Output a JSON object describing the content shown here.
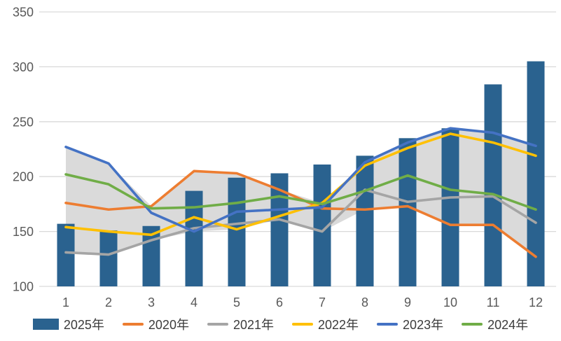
{
  "chart_data": {
    "type": "combo-bar-line-with-range-band",
    "title": "",
    "categories": [
      "1",
      "2",
      "3",
      "4",
      "5",
      "6",
      "7",
      "8",
      "9",
      "10",
      "11",
      "12"
    ],
    "y_axis": {
      "min": 100,
      "max": 350,
      "tick_interval": 50,
      "ticks": [
        100,
        150,
        200,
        250,
        300,
        350
      ],
      "tick_labels": [
        "100",
        "150",
        "200",
        "250",
        "300",
        "350"
      ]
    },
    "grid": {
      "horizontal": true,
      "vertical": false,
      "line_color": "#d9d9d9"
    },
    "axis_text_color": "#595959",
    "bar_series": {
      "name": "2025年",
      "color": "#2a628f",
      "values": [
        157,
        151,
        155,
        187,
        199,
        203,
        211,
        219,
        235,
        244,
        284,
        305
      ]
    },
    "line_series": [
      {
        "name": "2020年",
        "color": "#ed7d31",
        "values": [
          176,
          170,
          173,
          205,
          203,
          188,
          171,
          170,
          173,
          156,
          156,
          127
        ]
      },
      {
        "name": "2021年",
        "color": "#a5a5a5",
        "values": [
          131,
          129,
          142,
          153,
          157,
          161,
          150,
          188,
          177,
          181,
          182,
          158
        ]
      },
      {
        "name": "2022年",
        "color": "#ffc000",
        "values": [
          154,
          150,
          147,
          163,
          152,
          164,
          176,
          210,
          226,
          239,
          231,
          219
        ]
      },
      {
        "name": "2023年",
        "color": "#4472c4",
        "values": [
          227,
          212,
          167,
          150,
          168,
          170,
          172,
          213,
          231,
          244,
          240,
          228
        ]
      },
      {
        "name": "2024年",
        "color": "#70ad47",
        "values": [
          202,
          193,
          171,
          172,
          176,
          182,
          175,
          187,
          201,
          188,
          184,
          170
        ]
      }
    ],
    "range_band": {
      "description": "shaded area spanning min to max of the five line series at each month",
      "color": "#dadada"
    },
    "legend": [
      {
        "label": "2025年",
        "swatch": "bar",
        "color": "#2a628f"
      },
      {
        "label": "2020年",
        "swatch": "line",
        "color": "#ed7d31"
      },
      {
        "label": "2021年",
        "swatch": "line",
        "color": "#a5a5a5"
      },
      {
        "label": "2022年",
        "swatch": "line",
        "color": "#ffc000"
      },
      {
        "label": "2023年",
        "swatch": "line",
        "color": "#4472c4"
      },
      {
        "label": "2024年",
        "swatch": "line",
        "color": "#70ad47"
      }
    ],
    "legend_position": "bottom"
  }
}
